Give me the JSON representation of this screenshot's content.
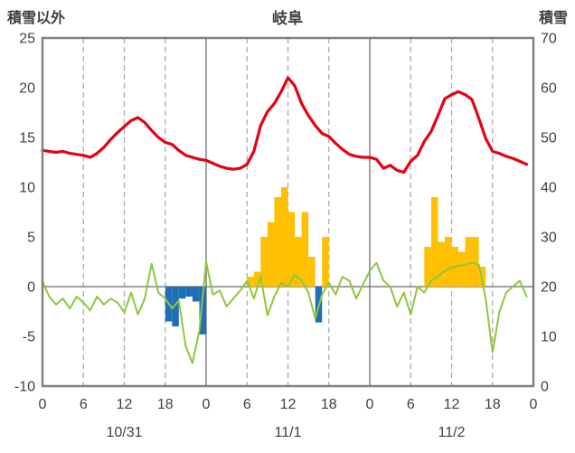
{
  "chart_data": {
    "type": "line+bar",
    "title": "岐阜",
    "left_axis": {
      "label": "積雪以外",
      "min": -10,
      "max": 25,
      "ticks": [
        25,
        20,
        15,
        10,
        5,
        0,
        -5,
        -10
      ]
    },
    "right_axis": {
      "label": "積雪",
      "min": 0,
      "max": 70,
      "ticks": [
        70,
        60,
        50,
        40,
        30,
        20,
        10,
        0
      ]
    },
    "x_axis": {
      "hours_span": 72,
      "tick_every": 6,
      "tick_labels": [
        "0",
        "6",
        "12",
        "18",
        "0",
        "6",
        "12",
        "18",
        "0",
        "6",
        "12",
        "18",
        "0"
      ],
      "day_labels": [
        "10/31",
        "11/1",
        "11/2"
      ]
    },
    "style": {
      "border": "#808080",
      "grid_solid": "#808080",
      "grid_dashed": "#ACACAC",
      "text": "#404040",
      "background": "#FFFFFF"
    },
    "series": [
      {
        "name": "precipitation-bars",
        "type": "bar",
        "positive_color": "#FFC000",
        "negative_color": "#1F6FB8",
        "values": [
          0,
          0,
          0,
          0,
          0,
          0,
          0,
          0,
          0,
          0,
          0,
          0,
          0,
          0,
          0,
          0,
          0,
          0,
          -3.5,
          -4,
          -1.2,
          -1,
          -1.5,
          -4.8,
          0,
          0,
          0,
          0,
          0,
          0,
          1,
          1.5,
          5,
          6.5,
          9,
          10,
          7.5,
          5,
          7.5,
          3,
          -3.6,
          5,
          0,
          0,
          0,
          0,
          0,
          0,
          0,
          0,
          0,
          0,
          0,
          0,
          0,
          0,
          4,
          9,
          4.5,
          5,
          4,
          3.5,
          5,
          5,
          2,
          0,
          0,
          0,
          0,
          0,
          0,
          0
        ]
      },
      {
        "name": "green-line",
        "type": "line",
        "color": "#8FC640",
        "stroke_width": 2,
        "values": [
          0.5,
          -1.0,
          -1.8,
          -1.2,
          -2.2,
          -1.0,
          -1.6,
          -2.4,
          -1.0,
          -1.8,
          -1.2,
          -1.6,
          -2.6,
          -0.6,
          -2.8,
          -1.2,
          2.3,
          -0.6,
          -1.2,
          -2.2,
          -1.4,
          -6.0,
          -7.7,
          -4.4,
          2.5,
          -0.8,
          -0.4,
          -2.0,
          -1.2,
          -0.4,
          0.6,
          -1.2,
          1.0,
          -2.9,
          -1.0,
          0.4,
          0.0,
          1.2,
          0.6,
          -0.6,
          -3.2,
          -0.8,
          0.4,
          -0.8,
          1.0,
          0.6,
          -1.2,
          0.2,
          1.6,
          2.4,
          0.6,
          0.0,
          -2.0,
          -0.6,
          -2.8,
          0.0,
          -0.6,
          0.6,
          1.0,
          1.6,
          1.9,
          2.1,
          2.2,
          2.4,
          2.2,
          -1.2,
          -6.6,
          -2.6,
          -0.6,
          0.0,
          0.6,
          -1.0
        ]
      },
      {
        "name": "temperature-line",
        "type": "line",
        "color": "#E60012",
        "stroke_width": 3.2,
        "values": [
          13.7,
          13.6,
          13.5,
          13.6,
          13.4,
          13.3,
          13.2,
          13.0,
          13.4,
          14.0,
          14.8,
          15.5,
          16.1,
          16.7,
          17.0,
          16.5,
          15.7,
          15.0,
          14.5,
          14.3,
          13.7,
          13.2,
          13.0,
          12.8,
          12.7,
          12.4,
          12.1,
          11.9,
          11.8,
          11.9,
          12.3,
          13.6,
          16.2,
          17.6,
          18.4,
          19.6,
          21.0,
          20.2,
          18.4,
          17.2,
          16.2,
          15.4,
          15.1,
          14.4,
          13.8,
          13.3,
          13.1,
          13.0,
          13.0,
          12.8,
          11.9,
          12.2,
          11.7,
          11.5,
          12.6,
          13.2,
          14.6,
          15.6,
          17.2,
          18.9,
          19.3,
          19.6,
          19.3,
          18.8,
          16.9,
          14.9,
          13.6,
          13.4,
          13.1,
          12.9,
          12.6,
          12.3
        ]
      }
    ]
  }
}
